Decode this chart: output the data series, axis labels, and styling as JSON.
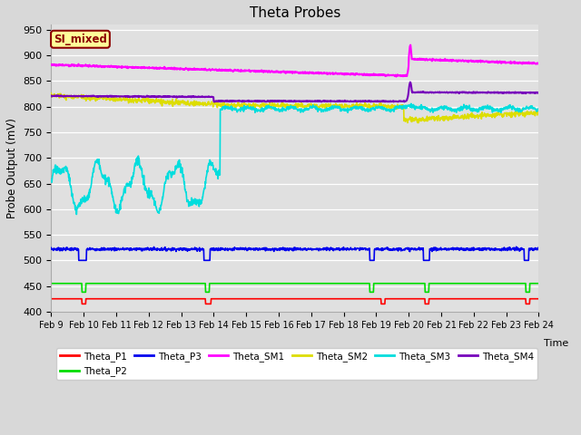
{
  "title": "Theta Probes",
  "ylabel": "Probe Output (mV)",
  "xlabel": "Time",
  "ylim": [
    400,
    960
  ],
  "yticks": [
    400,
    450,
    500,
    550,
    600,
    650,
    700,
    750,
    800,
    850,
    900,
    950
  ],
  "fig_facecolor": "#d8d8d8",
  "ax_facecolor": "#e0e0e0",
  "annotation_text": "SI_mixed",
  "annotation_bg": "#ffff99",
  "annotation_border": "#8B0000",
  "annotation_text_color": "#8B0000",
  "colors": {
    "Theta_P1": "#ff0000",
    "Theta_P2": "#00dd00",
    "Theta_P3": "#0000ee",
    "Theta_SM1": "#ff00ff",
    "Theta_SM2": "#dddd00",
    "Theta_SM3": "#00dddd",
    "Theta_SM4": "#7700bb"
  },
  "x_labels": [
    "Feb 9",
    "Feb 10",
    "Feb 11",
    "Feb 12",
    "Feb 13",
    "Feb 14",
    "Feb 15",
    "Feb 16",
    "Feb 17",
    "Feb 18",
    "Feb 19",
    "Feb 20",
    "Feb 21",
    "Feb 22",
    "Feb 23",
    "Feb 24"
  ]
}
